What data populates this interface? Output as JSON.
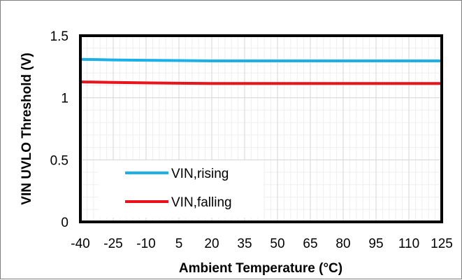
{
  "chart_data": {
    "type": "line",
    "title": "",
    "xlabel": "Ambient Temperature (°C)",
    "ylabel": "VIN UVLO Threshold (V)",
    "x_ticks": [
      -40,
      -25,
      -10,
      5,
      20,
      35,
      50,
      65,
      80,
      95,
      110,
      125
    ],
    "y_ticks": [
      "0",
      "0.5",
      "1",
      "1.5"
    ],
    "xlim": [
      -40,
      125
    ],
    "ylim": [
      0,
      1.5
    ],
    "grid": true,
    "legend_position": "bottom-left",
    "series": [
      {
        "name": "VIN,rising",
        "color": "#1BB0E8",
        "x": [
          -40,
          -25,
          -10,
          5,
          20,
          35,
          50,
          65,
          80,
          95,
          110,
          125
        ],
        "y": [
          1.31,
          1.305,
          1.302,
          1.3,
          1.297,
          1.297,
          1.297,
          1.297,
          1.297,
          1.297,
          1.297,
          1.297
        ]
      },
      {
        "name": "VIN,falling",
        "color": "#E8131B",
        "x": [
          -40,
          -25,
          -10,
          5,
          20,
          35,
          50,
          65,
          80,
          95,
          110,
          125
        ],
        "y": [
          1.128,
          1.124,
          1.12,
          1.117,
          1.115,
          1.115,
          1.115,
          1.115,
          1.115,
          1.115,
          1.115,
          1.115
        ]
      }
    ]
  }
}
